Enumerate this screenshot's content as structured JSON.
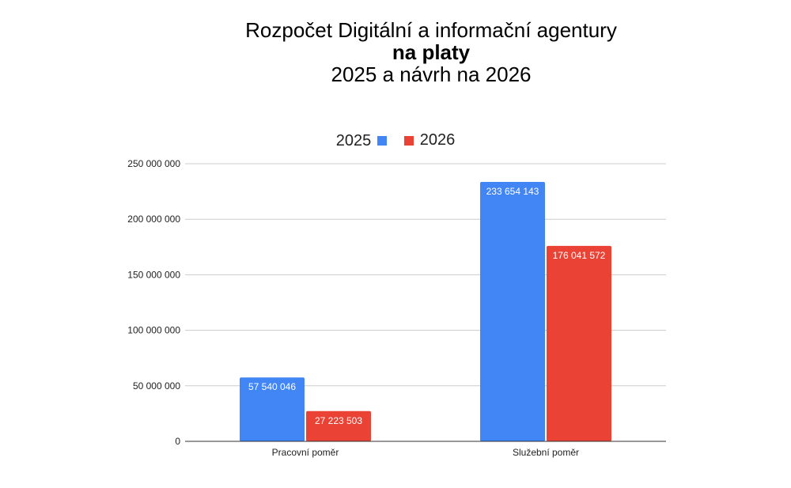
{
  "chart_data": {
    "type": "bar",
    "title_lines": [
      {
        "text": "Rozpočet Digitální a informační agentury",
        "bold": false
      },
      {
        "text": "na platy",
        "bold": true
      },
      {
        "text": "2025 a návrh na 2026",
        "bold": false
      }
    ],
    "categories": [
      "Pracovní poměr",
      "Služební poměr"
    ],
    "series": [
      {
        "name": "2025",
        "color": "#4285f4",
        "values": [
          57540046,
          233654143
        ],
        "labels": [
          "57 540 046",
          "233 654 143"
        ]
      },
      {
        "name": "2026",
        "color": "#ea4335",
        "values": [
          27223503,
          176041572
        ],
        "labels": [
          "27 223 503",
          "176 041 572"
        ]
      }
    ],
    "ylim": [
      0,
      250000000
    ],
    "yticks": [
      0,
      50000000,
      100000000,
      150000000,
      200000000,
      250000000
    ],
    "ytick_labels": [
      "0",
      "50 000 000",
      "100 000 000",
      "150 000 000",
      "200 000 000",
      "250 000 000"
    ],
    "legend_position": "top",
    "grid": true,
    "xlabel": "",
    "ylabel": ""
  }
}
